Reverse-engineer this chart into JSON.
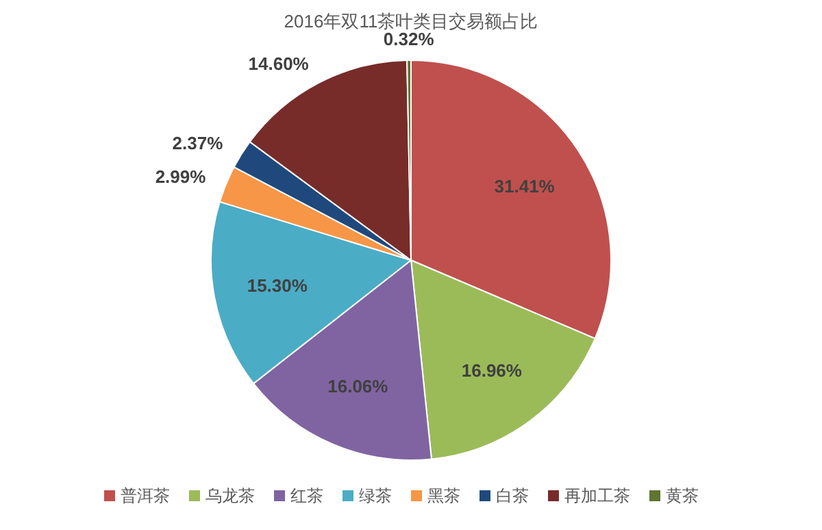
{
  "chart_data": {
    "type": "pie",
    "title": "2016年双11茶叶类目交易额占比",
    "categories": [
      "普洱茶",
      "乌龙茶",
      "红茶",
      "绿茶",
      "黑茶",
      "白茶",
      "再加工茶",
      "黄茶"
    ],
    "values": [
      31.41,
      16.96,
      16.06,
      15.3,
      2.99,
      2.37,
      14.6,
      0.32
    ],
    "colors": [
      "#c0504d",
      "#9bbb59",
      "#8064a2",
      "#4bacc6",
      "#f79646",
      "#1f497d",
      "#772c2a",
      "#5f7530"
    ],
    "value_labels": [
      "31.41%",
      "16.96%",
      "16.06%",
      "15.30%",
      "2.99%",
      "2.37%",
      "14.60%",
      "0.32%"
    ],
    "legend": "bottom"
  }
}
